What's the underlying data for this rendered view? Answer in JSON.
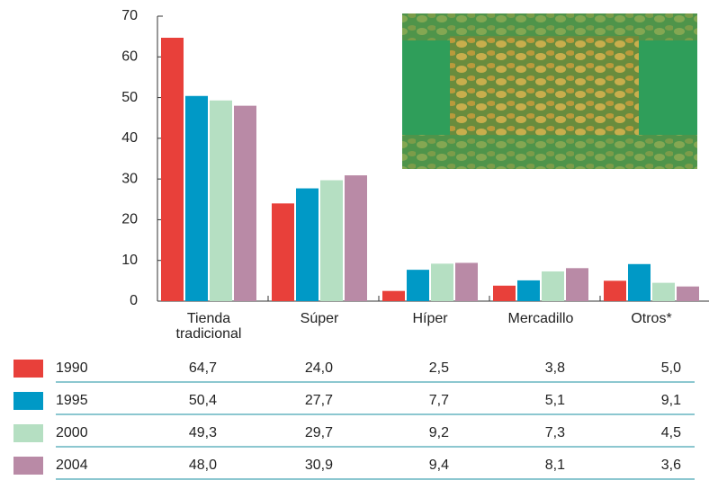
{
  "chart_data": {
    "type": "bar",
    "categories": [
      "Tienda tradicional",
      "Súper",
      "Híper",
      "Mercadillo",
      "Otros*"
    ],
    "series": [
      {
        "name": "1990",
        "color": "#e8403a",
        "values": [
          64.7,
          24.0,
          2.5,
          3.8,
          5.0
        ],
        "value_labels": [
          "64,7",
          "24,0",
          "2,5",
          "3,8",
          "5,0"
        ]
      },
      {
        "name": "1995",
        "color": "#0099c6",
        "values": [
          50.4,
          27.7,
          7.7,
          5.1,
          9.1
        ],
        "value_labels": [
          "50,4",
          "27,7",
          "7,7",
          "5,1",
          "9,1"
        ]
      },
      {
        "name": "2000",
        "color": "#b5dfc2",
        "values": [
          49.3,
          29.7,
          9.2,
          7.3,
          4.5
        ],
        "value_labels": [
          "49,3",
          "29,7",
          "9,2",
          "7,3",
          "4,5"
        ]
      },
      {
        "name": "2004",
        "color": "#b98aa6",
        "values": [
          48.0,
          30.9,
          9.4,
          8.1,
          3.6
        ],
        "value_labels": [
          "48,0",
          "30,9",
          "9,4",
          "8,1",
          "3,6"
        ]
      }
    ],
    "ylim": [
      0,
      70
    ],
    "yticks": [
      0,
      10,
      20,
      30,
      40,
      50,
      60,
      70
    ]
  }
}
